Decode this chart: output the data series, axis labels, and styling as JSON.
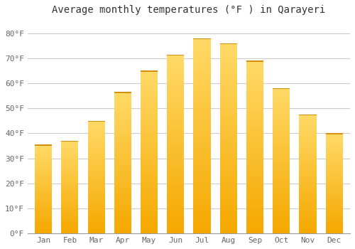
{
  "title": "Average monthly temperatures (°F ) in Qarayeri",
  "months": [
    "Jan",
    "Feb",
    "Mar",
    "Apr",
    "May",
    "Jun",
    "Jul",
    "Aug",
    "Sep",
    "Oct",
    "Nov",
    "Dec"
  ],
  "temperatures": [
    35.5,
    37.0,
    45.0,
    56.5,
    65.0,
    71.5,
    78.0,
    76.0,
    69.0,
    58.0,
    47.5,
    40.0
  ],
  "bar_color_bottom": "#F5A800",
  "bar_color_top": "#FFD966",
  "background_color": "#FFFFFF",
  "plot_bg_color": "#FFFFFF",
  "grid_color": "#CCCCCC",
  "ylim": [
    0,
    85
  ],
  "yticks": [
    0,
    10,
    20,
    30,
    40,
    50,
    60,
    70,
    80
  ],
  "ytick_labels": [
    "0°F",
    "10°F",
    "20°F",
    "30°F",
    "40°F",
    "50°F",
    "60°F",
    "70°F",
    "80°F"
  ],
  "title_fontsize": 10,
  "tick_fontsize": 8,
  "font_family": "monospace"
}
